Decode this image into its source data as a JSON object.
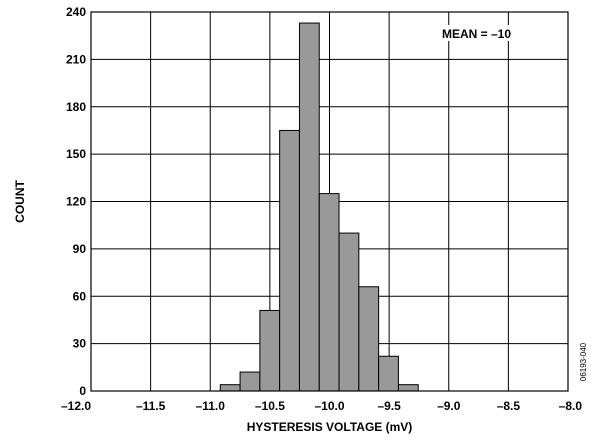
{
  "chart_data": {
    "type": "bar",
    "title": "",
    "xlabel": "HYSTERESIS VOLTAGE (mV)",
    "ylabel": "COUNT",
    "xlim": [
      -12.0,
      -8.0
    ],
    "ylim": [
      0,
      240
    ],
    "grid": true,
    "x_ticks": [
      -12.0,
      -11.5,
      -11.0,
      -10.5,
      -10.0,
      -9.5,
      -9.0,
      -8.5,
      -8.0
    ],
    "x_tick_labels": [
      "–12.0",
      "–11.5",
      "–11.0",
      "–10.5",
      "–10.0",
      "–9.5",
      "–9.0",
      "–8.5",
      "–8.0"
    ],
    "y_ticks": [
      0,
      30,
      60,
      90,
      120,
      150,
      180,
      210,
      240
    ],
    "y_tick_labels": [
      "0",
      "30",
      "60",
      "90",
      "120",
      "150",
      "180",
      "210",
      "240"
    ],
    "bin_width": 0.166,
    "bars": [
      {
        "x_start": -10.916,
        "value": 4
      },
      {
        "x_start": -10.75,
        "value": 12
      },
      {
        "x_start": -10.584,
        "value": 51
      },
      {
        "x_start": -10.418,
        "value": 165
      },
      {
        "x_start": -10.252,
        "value": 233
      },
      {
        "x_start": -10.086,
        "value": 125
      },
      {
        "x_start": -9.92,
        "value": 100
      },
      {
        "x_start": -9.754,
        "value": 66
      },
      {
        "x_start": -9.588,
        "value": 22
      },
      {
        "x_start": -9.422,
        "value": 4
      }
    ],
    "bar_color": "#999999",
    "annotation": "MEAN = –10",
    "figure_id": "06193-040"
  }
}
